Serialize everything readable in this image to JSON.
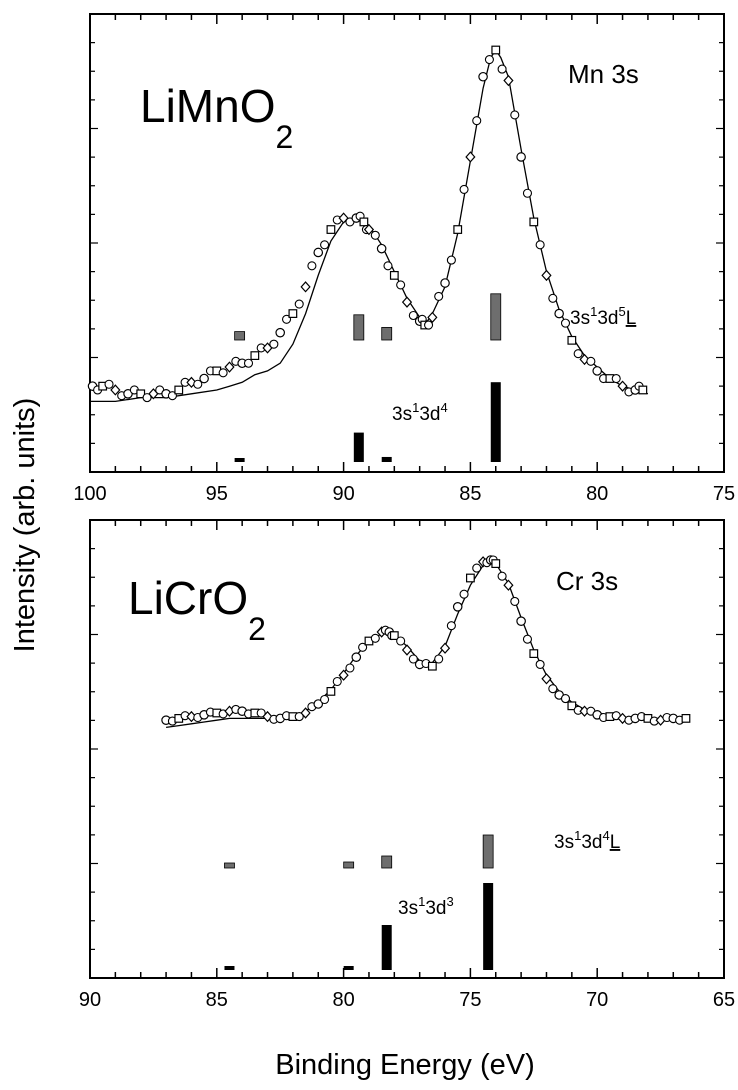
{
  "figure": {
    "ylabel": "Intensity (arb. units)",
    "xlabel": "Binding Energy (eV)"
  },
  "chart_data": [
    {
      "type": "line",
      "id": "top",
      "compound_main": "LiMnO",
      "compound_sub": "2",
      "peak_label": "Mn 3s",
      "xlim": [
        100,
        75
      ],
      "ylim": [
        0,
        1
      ],
      "xticks": [
        100,
        95,
        90,
        85,
        80,
        75
      ],
      "xticklabels": [
        "100",
        "95",
        "90",
        "85",
        "80",
        "75"
      ],
      "grid": false,
      "series": [
        {
          "name": "experiment (open symbols)",
          "style": "markers",
          "x": [
            99.9,
            99.5,
            99.0,
            98.5,
            98.0,
            97.5,
            97.0,
            96.5,
            96.0,
            95.5,
            95.0,
            94.5,
            94.0,
            93.5,
            93.0,
            92.5,
            92.0,
            91.5,
            91.0,
            90.5,
            90.0,
            89.5,
            89.2,
            89.0,
            88.5,
            88.0,
            87.5,
            87.0,
            86.8,
            86.5,
            86.0,
            85.5,
            85.0,
            84.5,
            84.0,
            83.5,
            83.0,
            82.5,
            82.0,
            81.5,
            81.0,
            80.5,
            80.0,
            79.5,
            79.0,
            78.5,
            78.2
          ],
          "y": [
            0.12,
            0.12,
            0.11,
            0.1,
            0.1,
            0.1,
            0.1,
            0.11,
            0.13,
            0.14,
            0.16,
            0.17,
            0.18,
            0.2,
            0.22,
            0.26,
            0.31,
            0.38,
            0.47,
            0.53,
            0.56,
            0.56,
            0.55,
            0.53,
            0.48,
            0.41,
            0.34,
            0.29,
            0.28,
            0.3,
            0.39,
            0.53,
            0.72,
            0.93,
            1.0,
            0.92,
            0.72,
            0.55,
            0.41,
            0.31,
            0.24,
            0.19,
            0.16,
            0.14,
            0.12,
            0.11,
            0.11
          ]
        },
        {
          "name": "fit (solid line)",
          "style": "line",
          "x": [
            100.0,
            99.0,
            98.0,
            97.0,
            96.0,
            95.0,
            94.5,
            94.0,
            93.5,
            93.0,
            92.5,
            92.0,
            91.5,
            91.0,
            90.5,
            90.0,
            89.5,
            89.2,
            89.0,
            88.5,
            88.0,
            87.5,
            87.0,
            86.7,
            86.5,
            86.0,
            85.5,
            85.0,
            84.5,
            84.2,
            84.0,
            83.8,
            83.5,
            83.0,
            82.5,
            82.0,
            81.5,
            81.0,
            80.5,
            80.0,
            79.5,
            79.0,
            78.5,
            78.0
          ],
          "y": [
            0.08,
            0.08,
            0.09,
            0.09,
            0.1,
            0.11,
            0.12,
            0.13,
            0.15,
            0.16,
            0.18,
            0.23,
            0.31,
            0.41,
            0.5,
            0.55,
            0.56,
            0.55,
            0.54,
            0.49,
            0.42,
            0.35,
            0.3,
            0.29,
            0.31,
            0.38,
            0.52,
            0.71,
            0.9,
            0.98,
            1.0,
            0.98,
            0.93,
            0.74,
            0.56,
            0.42,
            0.32,
            0.25,
            0.2,
            0.17,
            0.14,
            0.12,
            0.11,
            0.1
          ]
        }
      ],
      "sticks": [
        {
          "label": "3s13d5L",
          "style": "shaded",
          "lines": [
            {
              "x": 94.1,
              "height": 0.02
            },
            {
              "x": 89.4,
              "height": 0.06
            },
            {
              "x": 88.3,
              "height": 0.03
            },
            {
              "x": 84.0,
              "height": 0.11
            }
          ]
        },
        {
          "label": "3s13d4",
          "style": "solid",
          "lines": [
            {
              "x": 94.1,
              "height": 0.005
            },
            {
              "x": 89.4,
              "height": 0.07
            },
            {
              "x": 88.3,
              "height": 0.012
            },
            {
              "x": 84.0,
              "height": 0.19
            }
          ]
        }
      ],
      "annotations": [
        {
          "kind": "config",
          "base": "3s",
          "sup1": "1",
          "mid": "3d",
          "sup2": "5",
          "under": "L"
        },
        {
          "kind": "config",
          "base": "3s",
          "sup1": "1",
          "mid": "3d",
          "sup2": "4",
          "under": ""
        }
      ]
    },
    {
      "type": "line",
      "id": "bottom",
      "compound_main": "LiCrO",
      "compound_sub": "2",
      "peak_label": "Cr 3s",
      "xlim": [
        90,
        65
      ],
      "ylim": [
        0,
        1
      ],
      "xticks": [
        90,
        85,
        80,
        75,
        70,
        65
      ],
      "xticklabels": [
        "90",
        "85",
        "80",
        "75",
        "70",
        "65"
      ],
      "grid": false,
      "series": [
        {
          "name": "experiment (open symbols)",
          "style": "markers",
          "x": [
            87.0,
            86.5,
            86.0,
            85.5,
            85.0,
            84.5,
            84.0,
            83.5,
            83.0,
            82.5,
            82.0,
            81.5,
            81.0,
            80.5,
            80.0,
            79.5,
            79.0,
            78.5,
            78.2,
            78.0,
            77.5,
            77.0,
            76.5,
            76.0,
            75.5,
            75.0,
            74.5,
            74.2,
            74.0,
            73.5,
            73.0,
            72.5,
            72.0,
            71.5,
            71.0,
            70.5,
            70.0,
            69.5,
            69.0,
            68.5,
            68.0,
            67.5,
            67.0,
            66.5
          ],
          "y": [
            0.11,
            0.12,
            0.13,
            0.14,
            0.15,
            0.16,
            0.16,
            0.15,
            0.13,
            0.12,
            0.13,
            0.15,
            0.2,
            0.27,
            0.36,
            0.46,
            0.55,
            0.6,
            0.6,
            0.58,
            0.5,
            0.42,
            0.41,
            0.51,
            0.74,
            0.9,
            0.99,
            1.0,
            0.98,
            0.86,
            0.66,
            0.48,
            0.34,
            0.25,
            0.19,
            0.16,
            0.14,
            0.13,
            0.12,
            0.12,
            0.12,
            0.11,
            0.12,
            0.12
          ]
        },
        {
          "name": "fit (solid line)",
          "style": "line",
          "x": [
            87.0,
            86.5,
            86.0,
            85.5,
            85.0,
            84.5,
            84.0,
            83.5,
            83.0,
            82.5,
            82.0,
            81.5,
            81.0,
            80.5,
            80.0,
            79.5,
            79.0,
            78.5,
            78.3,
            78.0,
            77.5,
            77.0,
            76.7,
            76.5,
            76.0,
            75.5,
            75.0,
            74.5,
            74.3,
            74.0,
            73.5,
            73.0,
            72.5,
            72.0,
            71.5,
            71.0,
            70.5,
            70.0,
            69.5,
            69.0,
            68.5,
            68.0,
            67.5,
            67.0,
            66.5
          ],
          "y": [
            0.07,
            0.08,
            0.09,
            0.1,
            0.11,
            0.12,
            0.12,
            0.12,
            0.12,
            0.12,
            0.13,
            0.16,
            0.21,
            0.28,
            0.37,
            0.47,
            0.55,
            0.59,
            0.6,
            0.59,
            0.52,
            0.44,
            0.42,
            0.43,
            0.52,
            0.7,
            0.86,
            0.97,
            1.0,
            0.98,
            0.87,
            0.68,
            0.5,
            0.36,
            0.27,
            0.21,
            0.17,
            0.15,
            0.14,
            0.13,
            0.12,
            0.12,
            0.12,
            0.12,
            0.12
          ]
        }
      ],
      "sticks": [
        {
          "label": "3s13d4L",
          "style": "shaded",
          "lines": [
            {
              "x": 84.5,
              "height": 0.005
            },
            {
              "x": 79.8,
              "height": 0.02
            },
            {
              "x": 78.3,
              "height": 0.04
            },
            {
              "x": 74.3,
              "height": 0.11
            }
          ]
        },
        {
          "label": "3s13d3",
          "style": "solid",
          "lines": [
            {
              "x": 84.5,
              "height": 0.005
            },
            {
              "x": 79.8,
              "height": 0.01
            },
            {
              "x": 78.3,
              "height": 0.15
            },
            {
              "x": 74.3,
              "height": 0.29
            }
          ]
        }
      ],
      "annotations": [
        {
          "kind": "config",
          "base": "3s",
          "sup1": "1",
          "mid": "3d",
          "sup2": "4",
          "under": "L"
        },
        {
          "kind": "config",
          "base": "3s",
          "sup1": "1",
          "mid": "3d",
          "sup2": "3",
          "under": ""
        }
      ]
    }
  ]
}
